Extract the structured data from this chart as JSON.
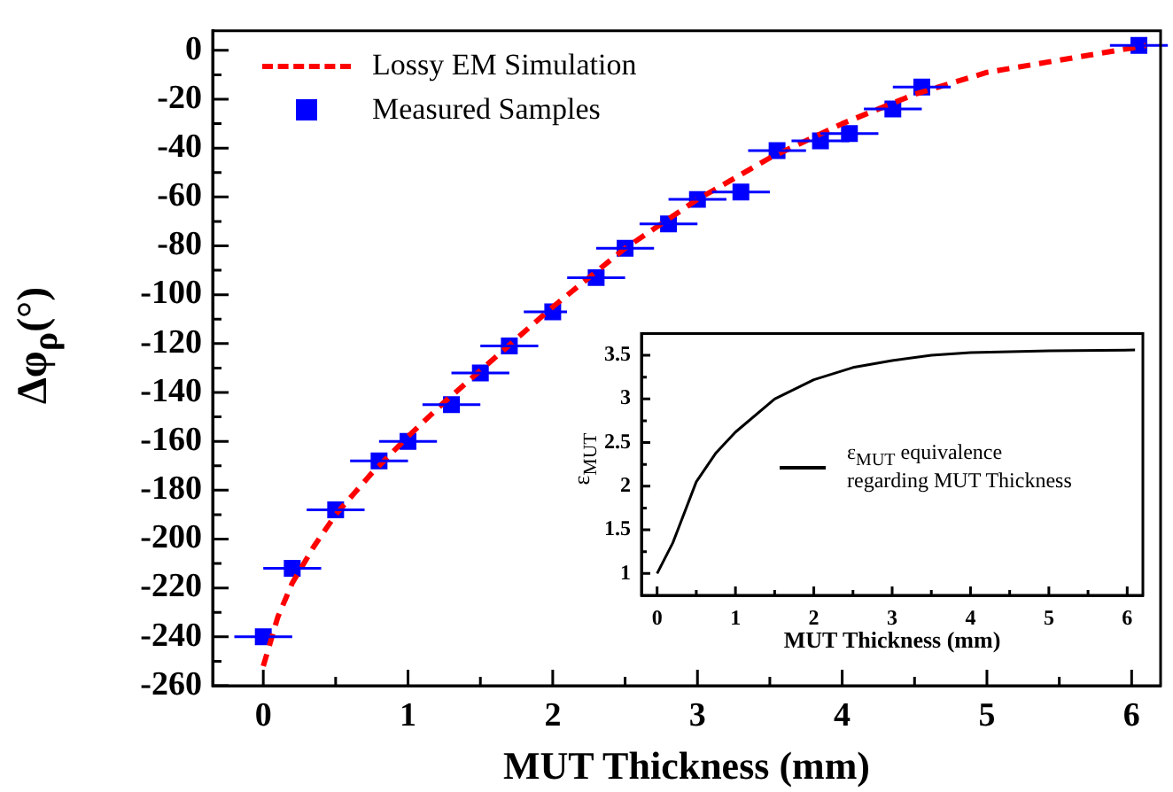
{
  "chart_data": [
    {
      "type": "line",
      "xlabel": "MUT Thickness (mm)",
      "ylabel": "Δφ$_{ρ}$(°)",
      "xlim": [
        -0.35,
        6.2
      ],
      "ylim": [
        -260,
        8
      ],
      "xticks": [
        0,
        {
          "value": 0.5,
          "label": null
        },
        1,
        {
          "value": 1.5,
          "label": null
        },
        2,
        {
          "value": 2.5,
          "label": null
        },
        3,
        {
          "value": 3.5,
          "label": null
        },
        4,
        {
          "value": 4.5,
          "label": null
        },
        5,
        {
          "value": 5.5,
          "label": null
        },
        6
      ],
      "yticks": [
        -260,
        {
          "value": -250,
          "label": null
        },
        -240,
        {
          "value": -230,
          "label": null
        },
        -220,
        {
          "value": -210,
          "label": null
        },
        -200,
        {
          "value": -190,
          "label": null
        },
        -180,
        {
          "value": -170,
          "label": null
        },
        -160,
        {
          "value": -150,
          "label": null
        },
        -140,
        {
          "value": -130,
          "label": null
        },
        -120,
        {
          "value": -110,
          "label": null
        },
        -100,
        {
          "value": -90,
          "label": null
        },
        -80,
        {
          "value": -70,
          "label": null
        },
        -60,
        {
          "value": -50,
          "label": null
        },
        -40,
        {
          "value": -30,
          "label": null
        },
        -20,
        {
          "value": -10,
          "label": null
        },
        0
      ],
      "grid": false,
      "legend": "top left",
      "series": [
        {
          "name": "Lossy EM Simulation",
          "type": "line",
          "color": "#ff0000",
          "line_style": "dashed",
          "marker": "none",
          "x": [
            0,
            0.1,
            0.2,
            0.35,
            0.5,
            0.75,
            1,
            1.25,
            1.5,
            2,
            2.5,
            3,
            3.5,
            4,
            4.5,
            5,
            5.5,
            6.1
          ],
          "values": [
            -252,
            -232,
            -218,
            -203,
            -190,
            -173,
            -158,
            -144,
            -131,
            -105,
            -81,
            -61,
            -44,
            -30,
            -18,
            -9,
            -4,
            2
          ]
        },
        {
          "name": "Measured Samples",
          "type": "scatter",
          "color": "#0000ff",
          "marker": "square",
          "x": [
            0,
            0.2,
            0.5,
            0.8,
            1.0,
            1.3,
            1.5,
            1.7,
            2.0,
            2.3,
            2.5,
            2.8,
            3.0,
            3.3,
            3.55,
            3.85,
            4.05,
            4.35,
            4.55,
            6.05
          ],
          "values": [
            -240,
            -212,
            -188,
            -168,
            -160,
            -145,
            -132,
            -121,
            -107,
            -93,
            -81,
            -71,
            -61,
            -58,
            -41,
            -37,
            -34,
            -24,
            -15,
            2
          ],
          "xerrors": [
            0.2,
            0.2,
            0.2,
            0.2,
            0.2,
            0.2,
            0.2,
            0.2,
            0.2,
            0.2,
            0.2,
            0.2,
            0.2,
            0.2,
            0.2,
            0.2,
            0.2,
            0.2,
            0.2,
            0.2
          ]
        }
      ]
    },
    {
      "type": "line",
      "xlabel": "MUT Thickness (mm)",
      "ylabel": "ε$_{MUT}$",
      "xlim": [
        -0.2,
        6.2
      ],
      "ylim": [
        0.75,
        3.75
      ],
      "xticks": [
        0,
        {
          "value": 0.5,
          "label": null
        },
        1,
        {
          "value": 1.5,
          "label": null
        },
        2,
        {
          "value": 2.5,
          "label": null
        },
        3,
        {
          "value": 3.5,
          "label": null
        },
        4,
        {
          "value": 4.5,
          "label": null
        },
        5,
        {
          "value": 5.5,
          "label": null
        },
        6
      ],
      "yticks": [
        1,
        {
          "value": 1.25,
          "label": null
        },
        1.5,
        {
          "value": 1.75,
          "label": null
        },
        2,
        {
          "value": 2.25,
          "label": null
        },
        2.5,
        {
          "value": 2.75,
          "label": null
        },
        3,
        {
          "value": 3.25,
          "label": null
        },
        3.5
      ],
      "grid": false,
      "legend": "center",
      "series": [
        {
          "name": "ε$_{MUT}$ equivalence regarding MUT Thickness",
          "type": "line",
          "color": "#000000",
          "line_style": "solid",
          "marker": "none",
          "x": [
            0,
            0.2,
            0.5,
            0.75,
            1,
            1.5,
            2,
            2.5,
            3,
            3.5,
            4,
            5,
            6.1
          ],
          "values": [
            1,
            1.35,
            2.05,
            2.38,
            2.62,
            3.0,
            3.22,
            3.36,
            3.44,
            3.5,
            3.53,
            3.55,
            3.56
          ]
        }
      ]
    }
  ]
}
